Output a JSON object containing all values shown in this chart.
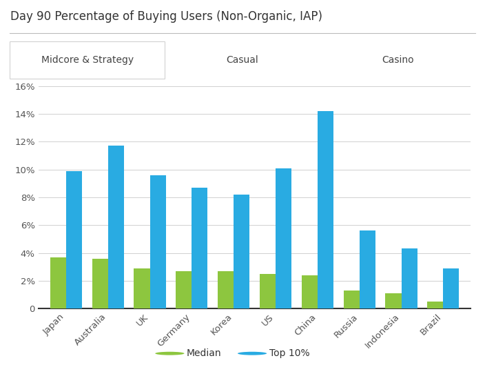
{
  "title": "Day 90 Percentage of Buying Users (Non-Organic, IAP)",
  "categories": [
    "Japan",
    "Australia",
    "UK",
    "Germany",
    "Korea",
    "US",
    "China",
    "Russia",
    "Indonesia",
    "Brazil"
  ],
  "median_values": [
    0.037,
    0.036,
    0.029,
    0.027,
    0.027,
    0.025,
    0.024,
    0.013,
    0.011,
    0.005
  ],
  "top10_values": [
    0.099,
    0.117,
    0.096,
    0.087,
    0.082,
    0.101,
    0.142,
    0.056,
    0.043,
    0.029
  ],
  "median_color": "#8dc63f",
  "top10_color": "#29abe2",
  "ylim": [
    0,
    0.16
  ],
  "yticks": [
    0,
    0.02,
    0.04,
    0.06,
    0.08,
    0.1,
    0.12,
    0.14,
    0.16
  ],
  "tab_labels": [
    "Midcore & Strategy",
    "Casual",
    "Casino"
  ],
  "legend_labels": [
    "Median",
    "Top 10%"
  ],
  "background_color": "#ffffff",
  "tab_bg_color": "#e8e8e8",
  "tab_active_color": "#ffffff",
  "grid_color": "#d0d0d0",
  "title_color": "#333333",
  "tick_color": "#555555",
  "bar_width": 0.38
}
